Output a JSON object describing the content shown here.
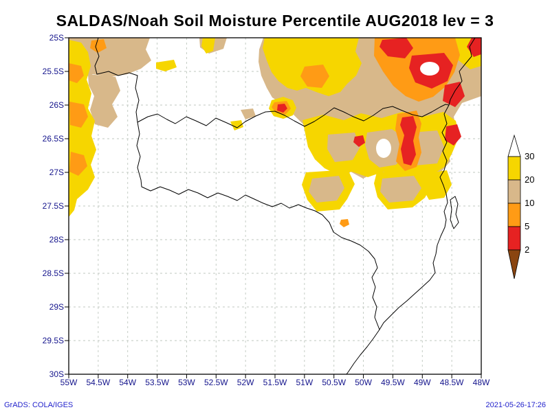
{
  "title": "SALDAS/Noah Soil Moisture Percentile AUG2018 lev = 3",
  "map": {
    "y_ticks": [
      "25S",
      "25.5S",
      "26S",
      "26.5S",
      "27S",
      "27.5S",
      "28S",
      "28.5S",
      "29S",
      "29.5S",
      "30S"
    ],
    "x_ticks": [
      "55W",
      "54.5W",
      "54W",
      "53.5W",
      "53W",
      "52.5W",
      "52W",
      "51.5W",
      "51W",
      "50.5W",
      "50W",
      "49.5W",
      "49W",
      "48.5W",
      "48W"
    ]
  },
  "legend": {
    "labels": [
      "30",
      "20",
      "10",
      "5",
      "2"
    ],
    "colors": {
      "gt30": "#ffffff",
      "c20_30": "#f6d600",
      "c10_20": "#d8b88a",
      "c5_10": "#ff9b15",
      "c2_5": "#e62222",
      "lt2": "#8a4510"
    }
  },
  "footer": {
    "left": "GrADS: COLA/IGES",
    "right": "2021-05-26-17:26"
  },
  "chart_data": {
    "type": "heatmap",
    "subtype": "filled-contour-map",
    "title": "SALDAS/Noah Soil Moisture Percentile AUG2018 lev = 3",
    "variable": "Soil Moisture Percentile",
    "model": "SALDAS/Noah",
    "time": "AUG2018",
    "level": 3,
    "lat_axis": {
      "labels": [
        "25S",
        "25.5S",
        "26S",
        "26.5S",
        "27S",
        "27.5S",
        "28S",
        "28.5S",
        "29S",
        "29.5S",
        "30S"
      ],
      "range": [
        "25S",
        "30S"
      ]
    },
    "lon_axis": {
      "labels": [
        "55W",
        "54.5W",
        "54W",
        "53.5W",
        "53W",
        "52.5W",
        "52W",
        "51.5W",
        "51W",
        "50.5W",
        "50W",
        "49.5W",
        "49W",
        "48.5W",
        "48W"
      ],
      "range": [
        "55W",
        "48W"
      ]
    },
    "contour_levels": [
      2,
      5,
      10,
      20,
      30
    ],
    "palette": [
      {
        "range": "> 30",
        "color": "#ffffff"
      },
      {
        "range": "20-30",
        "color": "#f6d600"
      },
      {
        "range": "10-20",
        "color": "#d8b88a"
      },
      {
        "range": "5-10",
        "color": "#ff9b15"
      },
      {
        "range": "2-5",
        "color": "#e62222"
      },
      {
        "range": "< 2",
        "color": "#8a4510"
      }
    ],
    "grid": "dashed",
    "legend_position": "right",
    "shading_summary": "Low percentile (dry) shading concentrated north of 27S: tan/yellow band across the north, orange and red cores in the northeast quadrant near 25-26.5S / 48.5-50W, a small bullseye near 26S 51.5W, and a yellow/orange strip along the western edge 55W between 25S and 27.5S; area south of 27.5S mostly unshaded."
  }
}
